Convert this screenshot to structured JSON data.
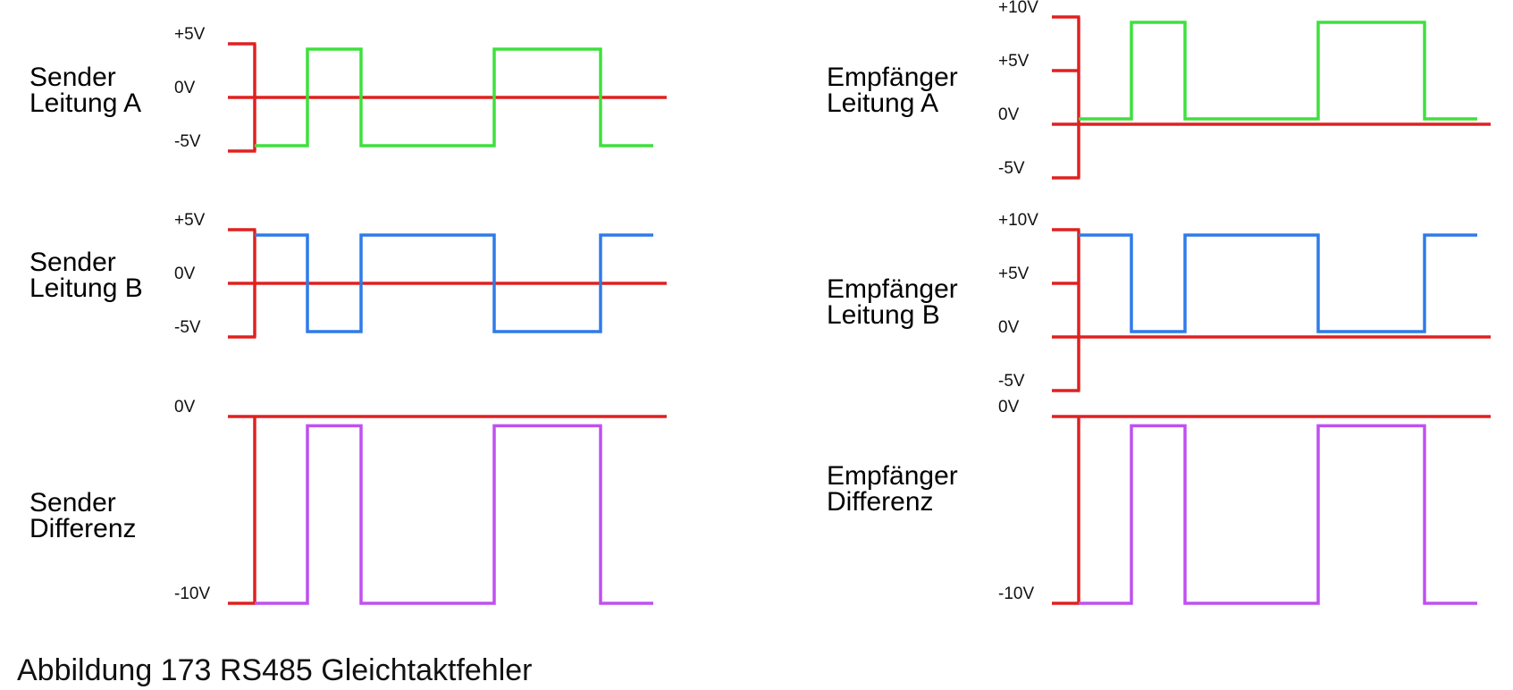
{
  "caption": "Abbildung 173 RS485 Gleichtaktfehler",
  "colors": {
    "axis": "#e02020",
    "line_a": "#3ee03e",
    "line_b": "#2f7be8",
    "difference": "#c050f0"
  },
  "chart_data": [
    {
      "type": "line",
      "label_lines": [
        "Sender",
        "Leitung A"
      ],
      "signal": "line_a",
      "tick_labels": [
        "+5V",
        "0V",
        "-5V"
      ],
      "ylim": [
        -5,
        5
      ],
      "steps": [
        -4.5,
        4.5,
        -4.5,
        4.5,
        -4.5
      ]
    },
    {
      "type": "line",
      "label_lines": [
        "Sender",
        "Leitung B"
      ],
      "signal": "line_b",
      "tick_labels": [
        "+5V",
        "0V",
        "-5V"
      ],
      "ylim": [
        -5,
        5
      ],
      "steps": [
        4.5,
        -4.5,
        4.5,
        -4.5,
        4.5
      ]
    },
    {
      "type": "line",
      "label_lines": [
        "Sender",
        "Differenz"
      ],
      "signal": "difference",
      "tick_labels": [
        "0V",
        "-10V"
      ],
      "ylim": [
        -10,
        0
      ],
      "steps": [
        -10,
        -0.5,
        -10,
        -0.5,
        -10
      ]
    },
    {
      "type": "line",
      "label_lines": [
        "Empfänger",
        "Leitung A"
      ],
      "signal": "line_a",
      "tick_labels": [
        "+10V",
        "+5V",
        "0V",
        "-5V"
      ],
      "ylim": [
        -5,
        10
      ],
      "steps": [
        0.5,
        9.5,
        0.5,
        9.5,
        0.5
      ]
    },
    {
      "type": "line",
      "label_lines": [
        "Empfänger",
        "Leitung B"
      ],
      "signal": "line_b",
      "tick_labels": [
        "+10V",
        "+5V",
        "0V",
        "-5V"
      ],
      "ylim": [
        -5,
        10
      ],
      "steps": [
        9.5,
        0.5,
        9.5,
        0.5,
        9.5
      ]
    },
    {
      "type": "line",
      "label_lines": [
        "Empfänger",
        "Differenz"
      ],
      "signal": "difference",
      "tick_labels": [
        "0V",
        "-10V"
      ],
      "ylim": [
        -10,
        0
      ],
      "steps": [
        -10,
        -0.5,
        -10,
        -0.5,
        -10
      ]
    }
  ]
}
